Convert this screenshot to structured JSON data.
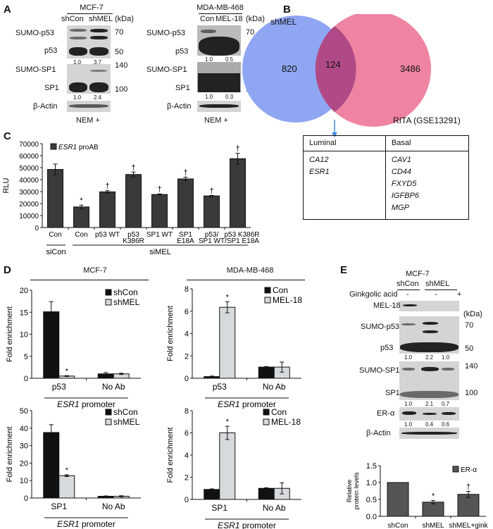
{
  "panels": {
    "A": "A",
    "B": "B",
    "C": "C",
    "D": "D",
    "E": "E"
  },
  "panelA": {
    "mcf7": {
      "cell_line": "MCF-7",
      "lanes": [
        "shCon",
        "shMEL"
      ],
      "kda": "(kDa)",
      "rows": {
        "sumo_p53": "SUMO-p53",
        "p53": "p53",
        "sumo_sp1": "SUMO-SP1",
        "sp1": "SP1",
        "actin": "β-Actin"
      },
      "markers": [
        "70",
        "50",
        "140",
        "100"
      ],
      "p53_quant": [
        "1.0",
        "3.7"
      ],
      "sp1_quant": [
        "1.0",
        "2.4"
      ],
      "treatment": "NEM +"
    },
    "mda": {
      "cell_line": "MDA-MB-468",
      "lanes": [
        "Con",
        "MEL-18"
      ],
      "kda": "(kDa)",
      "rows": {
        "sumo_p53": "SUMO-p53",
        "p53": "p53",
        "sumo_sp1": "SUMO-SP1",
        "sp1": "SP1",
        "actin": "β-Actin"
      },
      "markers": [
        "70",
        "50",
        "140",
        "100"
      ],
      "p53_quant": [
        "1.0",
        "0.5"
      ],
      "sp1_quant": [
        "1.0",
        "0.3"
      ],
      "treatment": "NEM +"
    }
  },
  "panelB": {
    "left_label": "shMEL",
    "right_label": "RITA (GSE13291)",
    "left_only": "820",
    "overlap": "124",
    "right_only": "3486",
    "colors": {
      "left": "#8fa6f2",
      "right": "#ec6f92",
      "overlap": "#b04a86"
    },
    "table": {
      "headers": [
        "Luminal",
        "Basal"
      ],
      "luminal": [
        "CA12",
        "ESR1"
      ],
      "basal": [
        "CAV1",
        "CD44",
        "FXYD5",
        "IGFBP6",
        "MGP"
      ]
    }
  },
  "panelD": {
    "titles": [
      "MCF-7",
      "MDA-MB-468"
    ],
    "promoter": "ESR1",
    "promoter_suffix": " promoter"
  },
  "panelE": {
    "cell_line": "MCF-7",
    "lanes": [
      "shCon",
      "shMEL"
    ],
    "treatment_label": "Ginkgolic acid",
    "treatment": [
      "-",
      "-",
      "+"
    ],
    "kda": "(kDa)",
    "rows": {
      "mel18": "MEL-18",
      "sumo_p53": "SUMO-p53",
      "p53": "p53",
      "sumo_sp1": "SUMO-SP1",
      "sp1": "SP1",
      "er": "ER-α",
      "actin": "β-Actin"
    },
    "markers": [
      "70",
      "50",
      "140",
      "100"
    ],
    "p53_quant": [
      "1.0",
      "2.2",
      "1.0"
    ],
    "sp1_quant": [
      "1.0",
      "2.1",
      "0.7"
    ],
    "er_quant": [
      "1.0",
      "0.4",
      "0.6"
    ]
  },
  "chart_data": [
    {
      "id": "C",
      "type": "bar",
      "ylabel": "RLU",
      "ylim": [
        0,
        70000
      ],
      "yticks": [
        0,
        10000,
        20000,
        30000,
        40000,
        50000,
        60000,
        70000
      ],
      "categories": [
        "Con",
        "Con",
        "p53 WT",
        "p53\nK386R",
        "SP1 WT",
        "SP1\nE18A",
        "p53/\nSP1 WT",
        "p53 K386R\n/SP1 E18A"
      ],
      "series": [
        {
          "name": "ESR1 proAB",
          "values": [
            48500,
            17200,
            29800,
            44300,
            27600,
            40600,
            26400,
            57500
          ],
          "errors": [
            4500,
            1500,
            1000,
            2000,
            500,
            1500,
            400,
            4500
          ],
          "color": "#3a3a3a"
        }
      ],
      "annotations": [
        "",
        "*",
        "†",
        "†",
        "†",
        "†",
        "†",
        "†"
      ],
      "groups": [
        {
          "label": "siCon",
          "from": 0,
          "to": 0
        },
        {
          "label": "siMEL",
          "from": 1,
          "to": 7
        }
      ],
      "legend": "top-left"
    },
    {
      "id": "D1",
      "type": "bar",
      "ylabel": "Fold enrichment",
      "ylim": [
        0,
        20
      ],
      "yticks": [
        0,
        5,
        10,
        15,
        20
      ],
      "categories": [
        "p53",
        "No Ab"
      ],
      "series": [
        {
          "name": "shCon",
          "values": [
            15.1,
            1.0
          ],
          "errors": [
            2.3,
            0.3
          ],
          "color": "#111111"
        },
        {
          "name": "shMEL",
          "values": [
            0.5,
            1.0
          ],
          "errors": [
            0.1,
            0.15
          ],
          "color": "#d6dadc"
        }
      ],
      "annotations": [
        [
          "",
          ""
        ],
        [
          "*",
          ""
        ]
      ],
      "legend": "top-right"
    },
    {
      "id": "D2",
      "type": "bar",
      "ylabel": "Fold enrichment",
      "ylim": [
        0,
        8
      ],
      "yticks": [
        0,
        2,
        4,
        6,
        8
      ],
      "categories": [
        "p53",
        "No Ab"
      ],
      "series": [
        {
          "name": "Con",
          "values": [
            0.15,
            1.0
          ],
          "errors": [
            0.05,
            0.05
          ],
          "color": "#111111"
        },
        {
          "name": "MEL-18",
          "values": [
            6.35,
            1.0
          ],
          "errors": [
            0.5,
            0.45
          ],
          "color": "#d6dadc"
        }
      ],
      "annotations": [
        [
          "",
          ""
        ],
        [
          "*",
          ""
        ]
      ],
      "legend": "top-right"
    },
    {
      "id": "D3",
      "type": "bar",
      "ylabel": "Fold enrichment",
      "ylim": [
        0,
        50
      ],
      "yticks": [
        0,
        10,
        20,
        30,
        40,
        50
      ],
      "categories": [
        "SP1",
        "No Ab"
      ],
      "series": [
        {
          "name": "shCon",
          "values": [
            37.5,
            1.0
          ],
          "errors": [
            4.5,
            0.2
          ],
          "color": "#111111"
        },
        {
          "name": "shMEL",
          "values": [
            12.8,
            1.0
          ],
          "errors": [
            0.5,
            0.3
          ],
          "color": "#d6dadc"
        }
      ],
      "annotations": [
        [
          "",
          ""
        ],
        [
          "*",
          ""
        ]
      ],
      "legend": "top-right"
    },
    {
      "id": "D4",
      "type": "bar",
      "ylabel": "Fold enrichment",
      "ylim": [
        0,
        8
      ],
      "yticks": [
        0,
        2,
        4,
        6,
        8
      ],
      "categories": [
        "SP1",
        "No Ab"
      ],
      "series": [
        {
          "name": "Con",
          "values": [
            0.9,
            1.0
          ],
          "errors": [
            0.05,
            0.05
          ],
          "color": "#111111"
        },
        {
          "name": "MEL-18",
          "values": [
            6.0,
            1.0
          ],
          "errors": [
            0.6,
            0.5
          ],
          "color": "#d6dadc"
        }
      ],
      "annotations": [
        [
          "",
          ""
        ],
        [
          "*",
          ""
        ]
      ],
      "legend": "top-right"
    },
    {
      "id": "E",
      "type": "bar",
      "ylabel": "Relative\nprotein levels",
      "ylim": [
        0,
        1.5
      ],
      "yticks": [
        "0.0",
        "0.5",
        "1.0",
        "1.5"
      ],
      "categories": [
        "shCon",
        "shMEL",
        "shMEL+gink"
      ],
      "series": [
        {
          "name": "ER-α",
          "values": [
            1.0,
            0.42,
            0.65
          ],
          "errors": [
            0,
            0.05,
            0.09
          ],
          "color": "#555555"
        }
      ],
      "annotations": [
        "",
        "*",
        "†"
      ],
      "legend": "top-right"
    }
  ]
}
